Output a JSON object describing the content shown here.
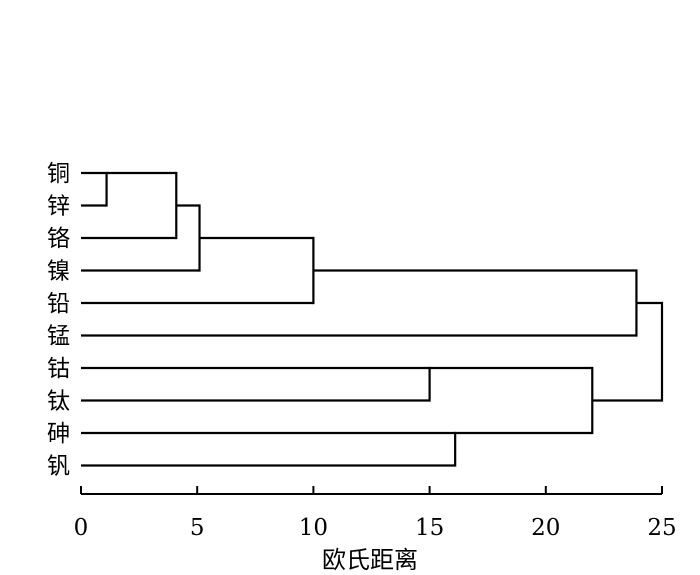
{
  "chart_data": {
    "type": "dendrogram",
    "title": "",
    "xlabel": "欧氏距离",
    "ylabel": "",
    "xlim": [
      0,
      25
    ],
    "xticks": [
      "0",
      "5",
      "10",
      "15",
      "20",
      "25"
    ],
    "grid": false,
    "leaves": [
      "铜",
      "锌",
      "铬",
      "镍",
      "铅",
      "锰",
      "钴",
      "钛",
      "砷",
      "钒"
    ],
    "merges": [
      {
        "id": "m0",
        "children": [
          "铜",
          "锌"
        ],
        "distance": 1.1
      },
      {
        "id": "m1",
        "children": [
          "m0",
          "铬"
        ],
        "distance": 4.1
      },
      {
        "id": "m2",
        "children": [
          "m1",
          "镍"
        ],
        "distance": 5.1
      },
      {
        "id": "m3",
        "children": [
          "m2",
          "铅"
        ],
        "distance": 10
      },
      {
        "id": "m4",
        "children": [
          "m3",
          "锰"
        ],
        "distance": 23.9
      },
      {
        "id": "m5",
        "children": [
          "钴",
          "钛"
        ],
        "distance": 15
      },
      {
        "id": "m6",
        "children": [
          "砷",
          "钒"
        ],
        "distance": 16.1
      },
      {
        "id": "m7",
        "children": [
          "m5",
          "m6"
        ],
        "distance": 22
      },
      {
        "id": "m8",
        "children": [
          "m4",
          "m7"
        ],
        "distance": 25
      }
    ],
    "line_color": "#000000"
  }
}
